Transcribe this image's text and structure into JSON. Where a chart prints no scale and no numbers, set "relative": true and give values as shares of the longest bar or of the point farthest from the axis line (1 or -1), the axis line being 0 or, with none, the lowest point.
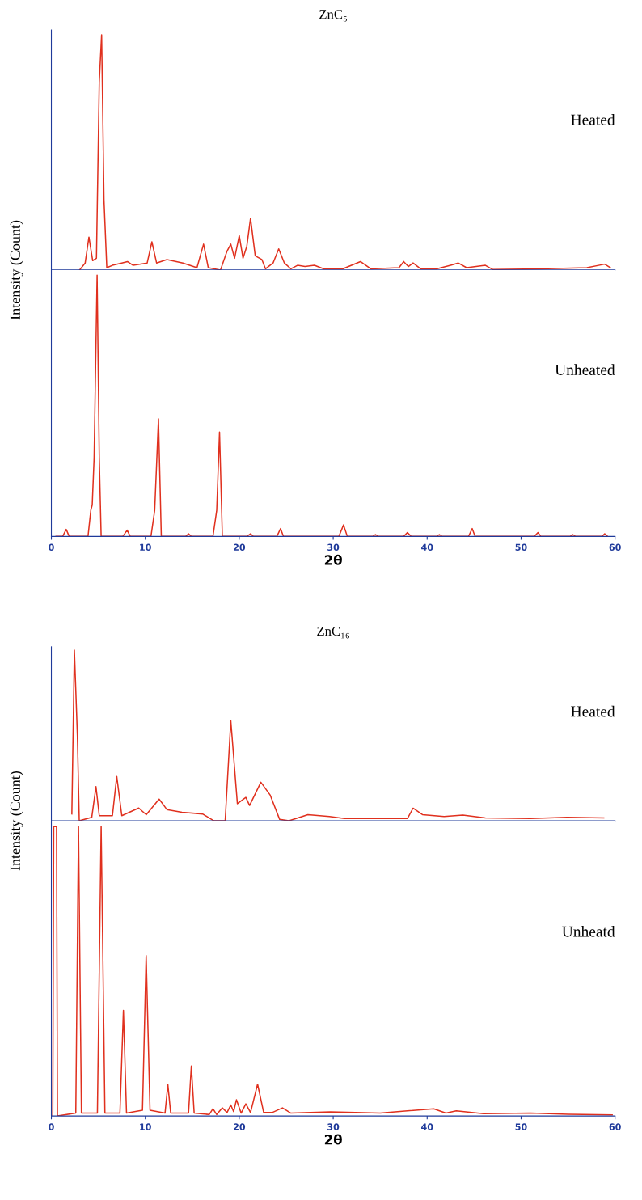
{
  "chart_data": [
    {
      "type": "line",
      "title": "ZnC₅",
      "ylabel": "Intensity (Count)",
      "relative": true,
      "xlim": [
        0,
        60
      ],
      "tick_labels": false,
      "annotations": [
        "Heated"
      ],
      "series": [
        {
          "color": "#e0301e",
          "x": [
            3.0,
            3.6,
            4.0,
            4.4,
            4.8,
            5.1,
            5.35,
            5.6,
            5.9,
            6.5,
            7.5,
            8.1,
            8.7,
            10.2,
            10.7,
            11.2,
            12.3,
            14,
            15.5,
            16.2,
            16.7,
            18,
            18.7,
            19.1,
            19.5,
            20.0,
            20.4,
            20.8,
            21.2,
            21.7,
            22.4,
            22.8,
            23.6,
            24.2,
            24.8,
            25.5,
            26.2,
            27,
            28,
            29,
            31,
            32.9,
            34,
            37,
            37.5,
            38,
            38.5,
            39.3,
            41,
            42.5,
            43.3,
            44.2,
            46.2,
            47,
            52,
            57,
            58.9,
            59.5
          ],
          "values": [
            0,
            0.03,
            0.14,
            0.04,
            0.05,
            0.8,
            1.0,
            0.3,
            0.01,
            0.02,
            0.03,
            0.036,
            0.02,
            0.03,
            0.12,
            0.03,
            0.044,
            0.03,
            0.01,
            0.11,
            0.01,
            0,
            0.08,
            0.11,
            0.05,
            0.146,
            0.05,
            0.1,
            0.22,
            0.06,
            0.045,
            0.005,
            0.03,
            0.09,
            0.03,
            0.005,
            0.02,
            0.015,
            0.02,
            0.005,
            0.005,
            0.036,
            0.005,
            0.01,
            0.036,
            0.015,
            0.03,
            0.005,
            0.005,
            0.02,
            0.03,
            0.01,
            0.02,
            0.002,
            0.005,
            0.01,
            0.025,
            0.01
          ]
        }
      ]
    },
    {
      "type": "line",
      "xlabel": "2θ",
      "relative": true,
      "xlim": [
        0,
        60
      ],
      "xticks": [
        0,
        10,
        20,
        30,
        40,
        50,
        60
      ],
      "tick_labels": "x",
      "annotations": [
        "Unheated"
      ],
      "series": [
        {
          "color": "#e0301e",
          "x": [
            0.5,
            1.2,
            1.58,
            1.9,
            3.9,
            4.2,
            4.35,
            4.55,
            4.87,
            5.1,
            5.3,
            7.6,
            8.07,
            8.4,
            10.6,
            11.0,
            11.4,
            11.7,
            14.3,
            14.6,
            14.9,
            17.2,
            17.6,
            17.9,
            18.2,
            20.8,
            21.2,
            21.5,
            24.0,
            24.4,
            24.7,
            30.6,
            31.1,
            31.5,
            34.2,
            34.5,
            34.8,
            37.5,
            37.9,
            38.3,
            41.0,
            41.3,
            41.6,
            44.4,
            44.8,
            45.1,
            51.4,
            51.8,
            52.1,
            55.2,
            55.5,
            55.8,
            58.6,
            58.9,
            59.2
          ],
          "values": [
            0,
            0,
            0.027,
            0,
            0,
            0.1,
            0.12,
            0.3,
            1.0,
            0.3,
            0,
            0,
            0.024,
            0,
            0,
            0.1,
            0.45,
            0,
            0,
            0.01,
            0,
            0,
            0.1,
            0.4,
            0,
            0,
            0.01,
            0,
            0,
            0.03,
            0,
            0,
            0.044,
            0,
            0,
            0.007,
            0,
            0,
            0.015,
            0,
            0,
            0.007,
            0,
            0,
            0.03,
            0,
            0,
            0.015,
            0,
            0,
            0.007,
            0,
            0,
            0.01,
            0
          ]
        }
      ]
    },
    {
      "type": "line",
      "title": "ZnC₁₆",
      "ylabel": "Intensity (Count)",
      "relative": true,
      "xlim": [
        0,
        60
      ],
      "tick_labels": false,
      "annotations": [
        "Heated"
      ],
      "series": [
        {
          "color": "#e0301e",
          "x": [
            2.18,
            2.45,
            2.77,
            2.97,
            4.3,
            4.75,
            5.1,
            6.5,
            6.96,
            7.5,
            9.3,
            10.1,
            11.47,
            12.3,
            13.9,
            16.1,
            17.3,
            18.5,
            19.1,
            19.8,
            20.7,
            21.1,
            22.3,
            23.3,
            24.3,
            25.3,
            27.3,
            29.6,
            31.2,
            37.9,
            38.5,
            39.5,
            41.8,
            43.8,
            46.2,
            51,
            54.9,
            58.8
          ],
          "values": [
            0.04,
            1.0,
            0.5,
            0,
            0.02,
            0.2,
            0.03,
            0.03,
            0.26,
            0.03,
            0.075,
            0.036,
            0.127,
            0.066,
            0.05,
            0.04,
            0,
            0,
            0.587,
            0.1,
            0.137,
            0.09,
            0.226,
            0.15,
            0.008,
            0,
            0.036,
            0.025,
            0.013,
            0.013,
            0.074,
            0.036,
            0.025,
            0.033,
            0.017,
            0.013,
            0.02,
            0.017
          ]
        }
      ]
    },
    {
      "type": "line",
      "xlabel": "2θ",
      "relative": true,
      "xlim": [
        0,
        60
      ],
      "xticks": [
        0,
        10,
        20,
        30,
        40,
        50,
        60
      ],
      "tick_labels": "x",
      "annotations": [
        "Unheatd"
      ],
      "series": [
        {
          "color": "#e0301e",
          "x": [
            0.15,
            0.25,
            0.55,
            0.65,
            2.6,
            2.89,
            3.2,
            4.9,
            5.3,
            5.7,
            7.3,
            7.67,
            8.0,
            9.7,
            10.09,
            10.5,
            12.1,
            12.4,
            12.7,
            14.6,
            14.9,
            15.2,
            16.8,
            17.2,
            17.6,
            18.2,
            18.7,
            19.1,
            19.4,
            19.7,
            20.2,
            20.7,
            21.2,
            21.95,
            22.6,
            23.5,
            24.6,
            25.5,
            29.7,
            35,
            40.7,
            42,
            43.1,
            46,
            51,
            55,
            59.7
          ],
          "values": [
            0,
            1.0,
            1.0,
            0,
            0.01,
            1.0,
            0.01,
            0.01,
            1.0,
            0.01,
            0.01,
            0.365,
            0.01,
            0.02,
            0.554,
            0.02,
            0.01,
            0.109,
            0.01,
            0.01,
            0.173,
            0.01,
            0.005,
            0.025,
            0.005,
            0.028,
            0.012,
            0.038,
            0.015,
            0.056,
            0.01,
            0.042,
            0.012,
            0.11,
            0.012,
            0.012,
            0.028,
            0.01,
            0.014,
            0.01,
            0.025,
            0.01,
            0.018,
            0.008,
            0.01,
            0.006,
            0.004
          ]
        }
      ]
    }
  ]
}
